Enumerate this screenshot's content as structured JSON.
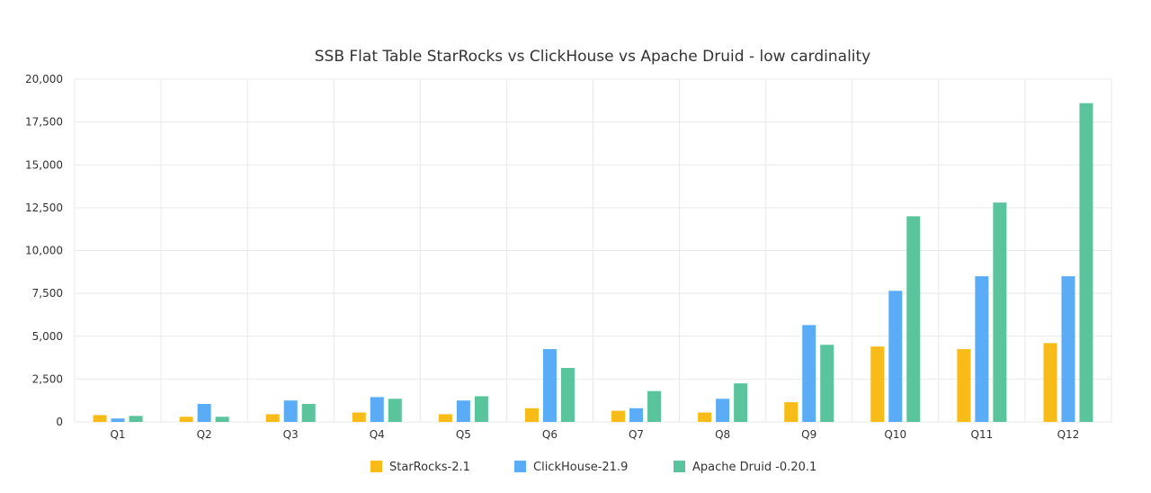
{
  "chart_data": {
    "type": "bar",
    "title": "SSB Flat Table StarRocks vs ClickHouse vs Apache Druid - low cardinality",
    "xlabel": "",
    "ylabel": "",
    "ylim": [
      0,
      20000
    ],
    "yticks": [
      "0",
      "2,500",
      "5,000",
      "7,500",
      "10,000",
      "12,500",
      "15,000",
      "17,500",
      "20,000"
    ],
    "grid": true,
    "legend_position": "bottom",
    "categories": [
      "Q1",
      "Q2",
      "Q3",
      "Q4",
      "Q5",
      "Q6",
      "Q7",
      "Q8",
      "Q9",
      "Q10",
      "Q11",
      "Q12"
    ],
    "series": [
      {
        "name": "StarRocks-2.1",
        "color": "#f9bb17",
        "values": [
          400,
          300,
          450,
          550,
          450,
          800,
          650,
          550,
          1150,
          4400,
          4250,
          4600
        ]
      },
      {
        "name": "ClickHouse-21.9",
        "color": "#5aacf7",
        "values": [
          200,
          1050,
          1250,
          1450,
          1250,
          4250,
          800,
          1350,
          5650,
          7650,
          8500,
          8500
        ]
      },
      {
        "name": "Apache Druid -0.20.1",
        "color": "#5ac49c",
        "values": [
          350,
          300,
          1050,
          1350,
          1500,
          3150,
          1800,
          2250,
          4500,
          12000,
          12800,
          18600
        ]
      }
    ]
  }
}
